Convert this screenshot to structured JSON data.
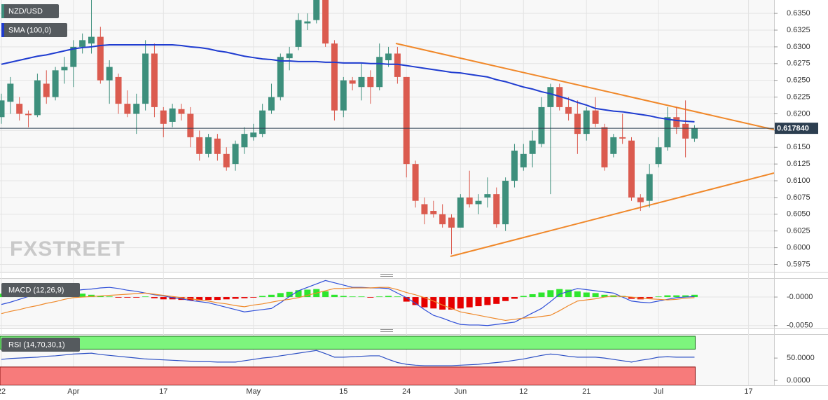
{
  "chart_data": [
    {
      "type": "candlestick",
      "categories": [
        "22",
        null,
        null,
        null,
        null,
        null,
        null,
        null,
        "Apr",
        null,
        null,
        null,
        null,
        null,
        null,
        null,
        null,
        null,
        "17",
        null,
        null,
        null,
        null,
        null,
        null,
        null,
        null,
        null,
        "May",
        null,
        null,
        null,
        null,
        null,
        null,
        null,
        null,
        null,
        "15",
        null,
        null,
        null,
        null,
        null,
        null,
        "24",
        null,
        null,
        null,
        null,
        null,
        "Jun",
        null,
        null,
        null,
        null,
        null,
        null,
        "12",
        null,
        null,
        null,
        null,
        null,
        null,
        "21",
        null,
        null,
        null,
        null,
        null,
        null,
        null,
        "Jul",
        null,
        null,
        null,
        null,
        null,
        null,
        null,
        null,
        null,
        "17",
        null,
        null
      ],
      "series": [
        {
          "name": "NZD/USD",
          "up_color": "#3d8f7c",
          "down_color": "#db5b4f",
          "open": [
            0.6195,
            0.6218,
            0.6215,
            0.62,
            0.6198,
            0.6245,
            0.6225,
            0.6265,
            0.627,
            0.63,
            0.6305,
            0.6315,
            0.625,
            0.6255,
            0.6215,
            0.62,
            0.6215,
            0.629,
            0.6205,
            0.6188,
            0.6207,
            0.62,
            0.6165,
            0.614,
            0.6163,
            0.614,
            0.6125,
            0.615,
            0.6165,
            0.617,
            0.6205,
            0.6225,
            0.6283,
            0.63,
            0.6335,
            0.634,
            0.637,
            0.6305,
            0.6205,
            0.625,
            0.624,
            0.6255,
            0.624,
            0.628,
            0.629,
            0.6255,
            0.6125,
            0.6065,
            0.6055,
            0.605,
            0.6045,
            0.603,
            0.6075,
            0.6065,
            0.6075,
            0.608,
            0.6035,
            0.61,
            0.612,
            0.614,
            0.6155,
            0.621,
            0.624,
            0.621,
            0.62,
            0.617,
            0.6205,
            0.618,
            0.614,
            0.6165,
            0.616,
            0.6075,
            0.607,
            0.6125,
            0.615,
            0.6195,
            0.6185,
            0.6163,
            null,
            null,
            null,
            null,
            null,
            null,
            null,
            null
          ],
          "high": [
            0.623,
            0.6255,
            0.6225,
            0.6205,
            0.626,
            0.6265,
            0.627,
            0.6285,
            0.631,
            0.632,
            0.6375,
            0.633,
            0.628,
            0.626,
            0.6235,
            0.623,
            0.631,
            0.6305,
            0.621,
            0.6215,
            0.6215,
            0.621,
            0.6175,
            0.617,
            0.617,
            0.615,
            0.616,
            0.618,
            0.6185,
            0.6215,
            0.6245,
            0.629,
            0.63,
            0.635,
            0.635,
            0.6375,
            0.6375,
            0.631,
            0.6255,
            0.6255,
            0.6275,
            0.6265,
            0.6305,
            0.63,
            0.63,
            0.6255,
            0.613,
            0.6075,
            0.607,
            0.6065,
            0.605,
            0.608,
            0.6115,
            0.608,
            0.6105,
            0.609,
            0.6105,
            0.6155,
            0.6155,
            0.6175,
            0.6225,
            0.6245,
            0.6245,
            0.6225,
            0.622,
            0.621,
            0.6225,
            0.6185,
            0.617,
            0.62,
            0.6165,
            0.608,
            0.6125,
            0.6165,
            0.621,
            0.621,
            0.622,
            0.6183,
            null,
            null,
            null,
            null,
            null,
            null,
            null,
            null
          ],
          "low": [
            0.6185,
            0.62,
            0.619,
            0.618,
            0.6195,
            0.6215,
            0.622,
            0.6245,
            0.624,
            0.629,
            0.629,
            0.6245,
            0.6215,
            0.62,
            0.6195,
            0.617,
            0.6205,
            0.6195,
            0.6165,
            0.618,
            0.619,
            0.615,
            0.613,
            0.6135,
            0.613,
            0.6115,
            0.6115,
            0.614,
            0.616,
            0.6165,
            0.62,
            0.622,
            0.6265,
            0.6295,
            0.6325,
            0.6335,
            0.63,
            0.619,
            0.6195,
            0.6235,
            0.622,
            0.6215,
            0.6235,
            0.627,
            0.6245,
            0.6105,
            0.606,
            0.6035,
            0.6045,
            0.603,
            0.599,
            0.603,
            0.606,
            0.605,
            0.606,
            0.603,
            0.6025,
            0.609,
            0.6115,
            0.612,
            0.615,
            0.608,
            0.6205,
            0.619,
            0.614,
            0.616,
            0.618,
            0.6115,
            0.6135,
            0.6155,
            0.607,
            0.6055,
            0.606,
            0.612,
            0.6145,
            0.617,
            0.6135,
            0.6158,
            null,
            null,
            null,
            null,
            null,
            null,
            null,
            null
          ],
          "close": [
            0.622,
            0.6245,
            0.62,
            0.6198,
            0.625,
            0.6225,
            0.6265,
            0.627,
            0.63,
            0.631,
            0.6315,
            0.625,
            0.627,
            0.6215,
            0.62,
            0.6215,
            0.629,
            0.621,
            0.6185,
            0.6208,
            0.62,
            0.6165,
            0.614,
            0.6165,
            0.614,
            0.612,
            0.6155,
            0.617,
            0.6172,
            0.6205,
            0.6225,
            0.6285,
            0.629,
            0.634,
            0.6338,
            0.637,
            0.6305,
            0.6205,
            0.625,
            0.6245,
            0.6255,
            0.624,
            0.6285,
            0.629,
            0.6255,
            0.6125,
            0.607,
            0.605,
            0.605,
            0.6035,
            0.603,
            0.6075,
            0.6065,
            0.607,
            0.608,
            0.6035,
            0.61,
            0.6145,
            0.614,
            0.616,
            0.621,
            0.624,
            0.621,
            0.62,
            0.617,
            0.6205,
            0.6185,
            0.612,
            0.6165,
            0.6163,
            0.6075,
            0.6068,
            0.611,
            0.615,
            0.6195,
            0.618,
            0.6163,
            0.6178,
            null,
            null,
            null,
            null,
            null,
            null,
            null,
            null
          ]
        },
        {
          "name": "SMA (100,0)",
          "type": "line",
          "color": "#1f3cd0",
          "values": [
            0.6274,
            0.6277,
            0.628,
            0.6283,
            0.6286,
            0.6288,
            0.6291,
            0.6294,
            0.6297,
            0.6299,
            0.63,
            0.6302,
            0.6303,
            0.6303,
            0.6303,
            0.6303,
            0.6303,
            0.6303,
            0.6303,
            0.6303,
            0.6302,
            0.63,
            0.6299,
            0.6297,
            0.6294,
            0.6292,
            0.6289,
            0.6286,
            0.6284,
            0.6282,
            0.6281,
            0.6279,
            0.6279,
            0.6278,
            0.6278,
            0.6278,
            0.6277,
            0.6277,
            0.6276,
            0.6276,
            0.6276,
            0.6275,
            0.6275,
            0.6274,
            0.6274,
            0.6272,
            0.627,
            0.6268,
            0.6266,
            0.6264,
            0.6262,
            0.6261,
            0.6259,
            0.6257,
            0.6255,
            0.6251,
            0.6248,
            0.6244,
            0.624,
            0.6237,
            0.6233,
            0.623,
            0.6226,
            0.6222,
            0.6217,
            0.6213,
            0.6208,
            0.6206,
            0.6204,
            0.6203,
            0.6201,
            0.6199,
            0.6197,
            0.6194,
            0.6192,
            0.619,
            0.6189,
            0.6188,
            null,
            null,
            null,
            null,
            null,
            null,
            null,
            null
          ]
        }
      ],
      "ylim": [
        0.5964,
        0.637
      ],
      "yticks": [
        {
          "value": 0.5975,
          "label": "0.5975"
        },
        {
          "value": 0.6,
          "label": "0.6000"
        },
        {
          "value": 0.6025,
          "label": "0.6025"
        },
        {
          "value": 0.605,
          "label": "0.6050"
        },
        {
          "value": 0.6075,
          "label": "0.6075"
        },
        {
          "value": 0.61,
          "label": "0.6100"
        },
        {
          "value": 0.6125,
          "label": "0.6125"
        },
        {
          "value": 0.615,
          "label": "0.6150"
        },
        {
          "value": 0.6175,
          "label": "0.6175"
        },
        {
          "value": 0.62,
          "label": "0.6200"
        },
        {
          "value": 0.6225,
          "label": "0.6225"
        },
        {
          "value": 0.625,
          "label": "0.6250"
        },
        {
          "value": 0.6275,
          "label": "0.6275"
        },
        {
          "value": 0.63,
          "label": "0.6300"
        },
        {
          "value": 0.6325,
          "label": "0.6325"
        },
        {
          "value": 0.635,
          "label": "0.6350"
        }
      ],
      "grid": true,
      "last_price": {
        "value": 0.61784,
        "label": "0.617840"
      },
      "watermark": "FXSTREET"
    },
    {
      "type": "macd",
      "title": "MACD (12,26,9)",
      "ylim": [
        -0.0054,
        0.0032
      ],
      "yticks": [
        {
          "value": 0,
          "label": "-0.0000"
        },
        {
          "value": -0.005,
          "label": "-0.0050"
        }
      ],
      "grid": true,
      "histogram": {
        "up_color": "#2ee62e",
        "down_color": "#e60000",
        "values": [
          0.0006,
          0.0007,
          0.0007,
          0.0008,
          0.0009,
          0.001,
          0.001,
          0.0009,
          0.0008,
          0.0006,
          0.0004,
          0.0002,
          0.0001,
          -0.0001,
          -0.0001,
          -0.0001,
          0.0001,
          -0.0002,
          -0.0004,
          -0.0004,
          -0.0005,
          -0.0006,
          -0.0006,
          -0.0005,
          -0.0005,
          -0.0004,
          -0.0003,
          -0.0002,
          -0.0001,
          0.0002,
          0.0004,
          0.0007,
          0.0009,
          0.0012,
          0.0013,
          0.0014,
          0.001,
          0.0004,
          0.0002,
          0.0001,
          0.0001,
          -0.0001,
          0.0001,
          0.0002,
          0.0001,
          -0.0008,
          -0.0014,
          -0.0018,
          -0.002,
          -0.0022,
          -0.0022,
          -0.002,
          -0.0018,
          -0.0016,
          -0.0014,
          -0.0012,
          -0.0007,
          -0.0003,
          0.0002,
          0.0005,
          0.0008,
          0.0012,
          0.0014,
          0.0013,
          0.001,
          0.0008,
          0.0007,
          0.0004,
          0.0003,
          0.0002,
          -0.0003,
          -0.0004,
          -0.0002,
          0.0001,
          0.0003,
          0.0003,
          0.0003,
          0.0004,
          null,
          null,
          null,
          null,
          null,
          null,
          null,
          null
        ]
      },
      "series": [
        {
          "color": "#2f4fd8",
          "values": [
            -0.0013,
            -0.0009,
            -0.0004,
            0.0001,
            0.0005,
            0.0007,
            0.0008,
            0.001,
            0.0011,
            0.0013,
            0.0014,
            0.0016,
            0.0017,
            0.0015,
            0.0012,
            0.001,
            0.0007,
            0.0004,
            0.0002,
            -0.0001,
            -0.0003,
            -0.0006,
            -0.0008,
            -0.001,
            -0.0014,
            -0.0018,
            -0.0022,
            -0.0026,
            -0.0024,
            -0.0022,
            -0.002,
            -0.001,
            0.0001,
            0.0011,
            0.0017,
            0.0023,
            0.0029,
            0.0025,
            0.0021,
            0.0017,
            0.0017,
            0.0016,
            0.0016,
            0.0015,
            0.0007,
            -0.0001,
            -0.0011,
            -0.0022,
            -0.0032,
            -0.0037,
            -0.0043,
            -0.0048,
            -0.0049,
            -0.0049,
            -0.005,
            -0.0048,
            -0.0046,
            -0.0044,
            -0.0036,
            -0.0028,
            -0.002,
            -0.0008,
            0.0005,
            0.001,
            0.0015,
            0.0013,
            0.0011,
            0.0009,
            0.0007,
            0,
            -0.0007,
            -0.0009,
            -0.001,
            -0.0007,
            -0.0004,
            -0.0001,
            0,
            0.0001,
            null,
            null,
            null,
            null,
            null,
            null,
            null,
            null
          ]
        },
        {
          "color": "#ef8a2c",
          "values": [
            -0.0029,
            -0.0025,
            -0.0022,
            -0.0018,
            -0.0015,
            -0.0011,
            -0.0008,
            -0.0004,
            -0.0001,
            0,
            0.0001,
            0.0002,
            0.0003,
            0.0004,
            0.0005,
            0.0006,
            0.0007,
            0.0005,
            0.0003,
            0.0001,
            -0.0001,
            -0.0003,
            -0.0005,
            -0.0007,
            -0.001,
            -0.0012,
            -0.0015,
            -0.0017,
            -0.0014,
            -0.0012,
            -0.0009,
            -0.0006,
            -0.0004,
            -0.0001,
            0.0003,
            0.0007,
            0.0011,
            0.0015,
            0.0015,
            0.0016,
            0.0016,
            0.0016,
            0.0017,
            0.0017,
            0.0013,
            0.0008,
            0.0004,
            -0.0001,
            -0.0007,
            -0.0014,
            -0.002,
            -0.0026,
            -0.0029,
            -0.0032,
            -0.0035,
            -0.0038,
            -0.0041,
            -0.0039,
            -0.0037,
            -0.0036,
            -0.0034,
            -0.0032,
            -0.0024,
            -0.0015,
            -0.0007,
            -0.0005,
            -0.0003,
            0,
            0.0002,
            0.0001,
            0,
            -0.0002,
            -0.0003,
            -0.0004,
            -0.0005,
            -0.0004,
            -0.0002,
            -0.0001,
            null,
            null,
            null,
            null,
            null,
            null,
            null,
            null
          ]
        }
      ]
    },
    {
      "type": "rsi",
      "title": "RSI (14,70,30,1)",
      "ylim": [
        -11,
        102
      ],
      "yticks": [
        {
          "value": 50,
          "label": "50.0000"
        },
        {
          "value": 0,
          "label": "0.0000"
        }
      ],
      "overbought": 70,
      "oversold": 30,
      "overbought_color": "#7df57d",
      "oversold_color": "#f77b7b",
      "series": [
        {
          "color": "#2c4fc4",
          "values": [
            47,
            49,
            50,
            51,
            52,
            54,
            55,
            57,
            59,
            60,
            61,
            58,
            56,
            54,
            52,
            50,
            48,
            47,
            46,
            45,
            44,
            43,
            42,
            42,
            41,
            41,
            41,
            44,
            47,
            50,
            52,
            55,
            58,
            61,
            64,
            67,
            60,
            52,
            52,
            53,
            54,
            55,
            55,
            47,
            40,
            36,
            34,
            33,
            33,
            33,
            33,
            34,
            35,
            36,
            38,
            40,
            42,
            45,
            48,
            52,
            56,
            59,
            57,
            54,
            52,
            52,
            52,
            50,
            47,
            44,
            41,
            45,
            48,
            52,
            53,
            52,
            52,
            52,
            null,
            null,
            null,
            null,
            null,
            null,
            null,
            null
          ]
        }
      ]
    }
  ]
}
